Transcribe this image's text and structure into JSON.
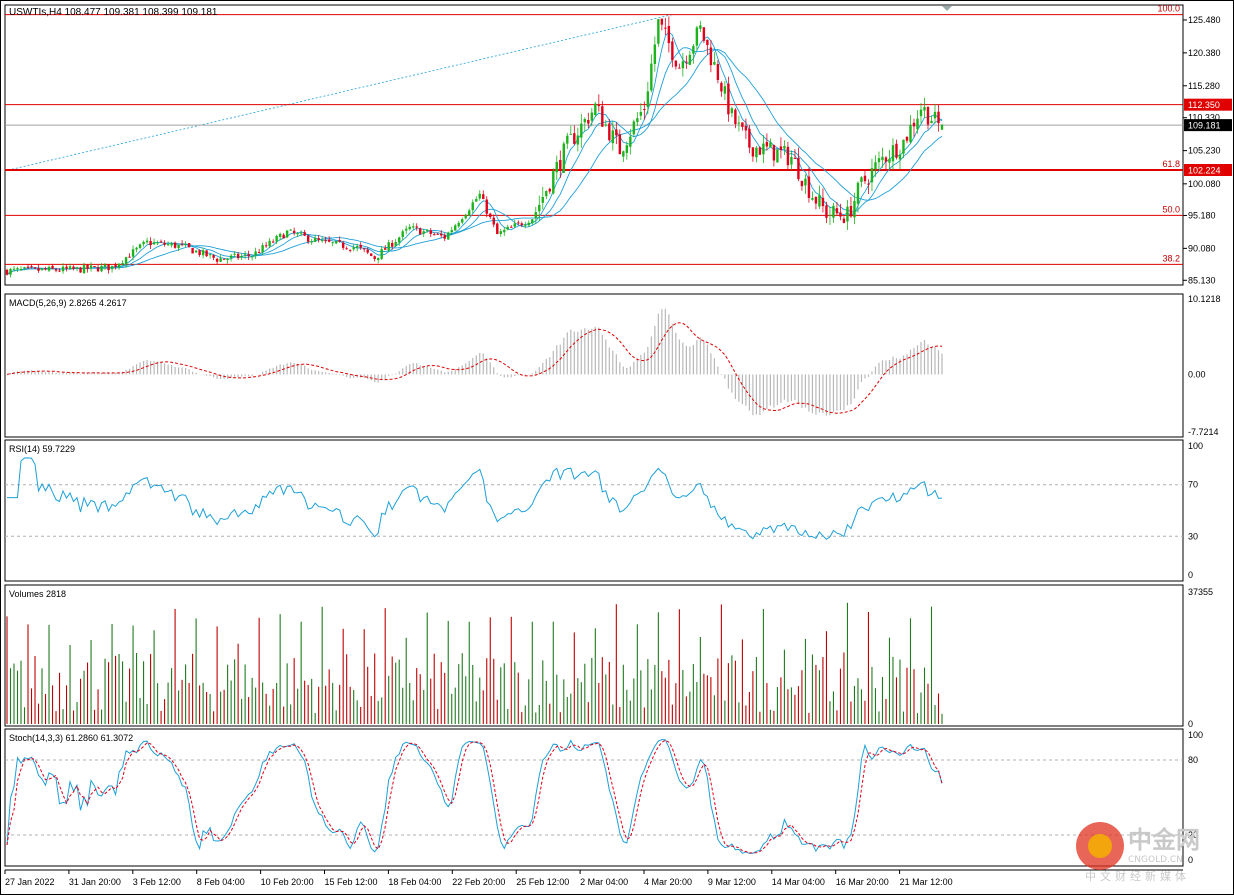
{
  "colors": {
    "up": "#1db31d",
    "down": "#e0001b",
    "level": "#e00000",
    "ma": "#1ea0d8",
    "macd_signal": "#e00000",
    "grid": "#b0b0b0",
    "frame": "#000000",
    "price_tag": "#000000",
    "stoch_main": "#1ea0d8",
    "vol_up": "#1f7a1f",
    "vol_down": "#c00000"
  },
  "header": {
    "symbol_line": "USWTIs,H4  108.477 109.381 108.399 109.181"
  },
  "panes": {
    "price": {
      "ticks": [
        "125.480",
        "120.380",
        "115.280",
        "110.330",
        "105.230",
        "100.080",
        "95.180",
        "90.080",
        "85.130"
      ],
      "tick_values": [
        125.48,
        120.38,
        115.28,
        110.33,
        105.23,
        100.08,
        95.18,
        90.08,
        85.13
      ],
      "range": [
        84.4,
        127.8
      ],
      "fib_labels": [
        "100.0",
        "61.8",
        "50.0",
        "38.2"
      ],
      "fib_values": [
        126.3,
        102.224,
        95.2,
        87.6
      ],
      "tags": [
        {
          "text": "112.350",
          "value": 112.35,
          "bg": "#e00000"
        },
        {
          "text": "109.181",
          "value": 109.181,
          "bg": "#000000"
        },
        {
          "text": "102.224",
          "value": 102.224,
          "bg": "#e00000"
        }
      ]
    },
    "macd": {
      "title": "MACD(5,26,9) 2.8265 4.2617",
      "ticks": [
        "10.1218",
        "0.00",
        "-7.7214"
      ],
      "range": [
        -7.7214,
        10.1218
      ]
    },
    "rsi": {
      "title": "RSI(14) 59.7229",
      "ticks": [
        "100",
        "70",
        "30",
        "0"
      ]
    },
    "volumes": {
      "title": "Volumes 2818",
      "ticks": [
        "37355",
        "0"
      ],
      "max": 37355
    },
    "stoch": {
      "title": "Stoch(14,3,3) 61.2860 61.3072",
      "ticks": [
        "100",
        "80",
        "20",
        "0"
      ]
    }
  },
  "x_axis": [
    "27 Jan 2022",
    "31 Jan 20:00",
    "3 Feb 12:00",
    "8 Feb 04:00",
    "10 Feb 20:00",
    "15 Feb 12:00",
    "18 Feb 04:00",
    "22 Feb 20:00",
    "25 Feb 12:00",
    "2 Mar 04:00",
    "4 Mar 20:00",
    "9 Mar 12:00",
    "14 Mar 04:00",
    "16 Mar 20:00",
    "21 Mar 12:00"
  ],
  "watermark": {
    "brand": "中金网",
    "site": "CNGOLD.CN",
    "sub": "中文财经新媒体"
  },
  "chart_data": {
    "type": "candlestick",
    "symbol": "USWTIs",
    "timeframe": "H4",
    "last": {
      "open": 108.477,
      "high": 109.381,
      "low": 108.399,
      "close": 109.181
    },
    "price_anchors": [
      {
        "t": 0,
        "p": 86.6
      },
      {
        "t": 20,
        "p": 86.8
      },
      {
        "t": 30,
        "p": 87.2
      },
      {
        "t": 40,
        "p": 91.0
      },
      {
        "t": 50,
        "p": 90.4
      },
      {
        "t": 60,
        "p": 88.4
      },
      {
        "t": 70,
        "p": 89.0
      },
      {
        "t": 80,
        "p": 92.6
      },
      {
        "t": 90,
        "p": 91.0
      },
      {
        "t": 100,
        "p": 90.2
      },
      {
        "t": 105,
        "p": 88.6
      },
      {
        "t": 115,
        "p": 93.2
      },
      {
        "t": 125,
        "p": 91.8
      },
      {
        "t": 135,
        "p": 98.4
      },
      {
        "t": 140,
        "p": 92.2
      },
      {
        "t": 150,
        "p": 94.8
      },
      {
        "t": 160,
        "p": 106.0
      },
      {
        "t": 168,
        "p": 112.0
      },
      {
        "t": 175,
        "p": 105.4
      },
      {
        "t": 182,
        "p": 112.0
      },
      {
        "t": 186,
        "p": 125.0
      },
      {
        "t": 192,
        "p": 118.5
      },
      {
        "t": 198,
        "p": 124.0
      },
      {
        "t": 203,
        "p": 117.0
      },
      {
        "t": 207,
        "p": 110.4
      },
      {
        "t": 212,
        "p": 106.0
      },
      {
        "t": 218,
        "p": 105.2
      },
      {
        "t": 224,
        "p": 104.2
      },
      {
        "t": 230,
        "p": 98.4
      },
      {
        "t": 234,
        "p": 95.6
      },
      {
        "t": 240,
        "p": 95.2
      },
      {
        "t": 244,
        "p": 100.0
      },
      {
        "t": 250,
        "p": 104.0
      },
      {
        "t": 256,
        "p": 106.6
      },
      {
        "t": 261,
        "p": 112.0
      },
      {
        "t": 266,
        "p": 109.2
      }
    ],
    "macd": {
      "histogram_last": 4.2617,
      "signal_last": 2.8265
    },
    "rsi_last": 59.7229,
    "volume_last": 2818,
    "stoch": {
      "k": 61.286,
      "d": 61.3072
    }
  }
}
